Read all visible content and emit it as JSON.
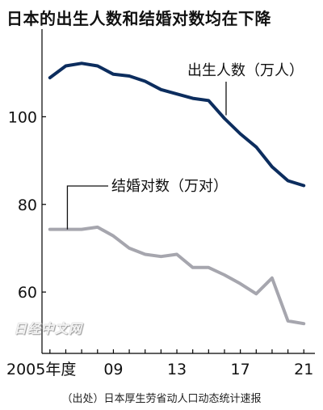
{
  "title": "日本的出生人数和结婚对数均在下降",
  "source": "（出处）日本厚生劳省动人口动态统计速报",
  "watermark": "日经中文网",
  "chart_data": {
    "type": "line",
    "title": "日本的出生人数和结婚对数均在下降",
    "x": [
      2005,
      2006,
      2007,
      2008,
      2009,
      2010,
      2011,
      2012,
      2013,
      2014,
      2015,
      2016,
      2017,
      2018,
      2019,
      2020,
      2021
    ],
    "x_tick_labels": [
      {
        "x": 2005,
        "label": "2005年度"
      },
      {
        "x": 2009,
        "label": "09"
      },
      {
        "x": 2013,
        "label": "13"
      },
      {
        "x": 2017,
        "label": "17"
      },
      {
        "x": 2021,
        "label": "21"
      }
    ],
    "y_ticks": [
      60,
      80,
      100
    ],
    "ylim": [
      46,
      120
    ],
    "xlim": [
      2004.5,
      2021.7
    ],
    "grid": false,
    "series": [
      {
        "name": "出生人数（万人）",
        "color": "#0c2d5e",
        "values": [
          108.9,
          111.6,
          112.2,
          111.6,
          109.7,
          109.3,
          108.1,
          106.2,
          105.2,
          104.2,
          103.7,
          99.6,
          96.1,
          93.1,
          88.6,
          85.4,
          84.3
        ]
      },
      {
        "name": "结婚对数（万对）",
        "color": "#a6a6ae",
        "values": [
          74.3,
          74.3,
          74.3,
          74.8,
          72.8,
          70.0,
          68.6,
          68.1,
          68.6,
          65.6,
          65.6,
          63.9,
          61.9,
          59.6,
          63.2,
          53.4,
          52.8
        ]
      }
    ]
  }
}
